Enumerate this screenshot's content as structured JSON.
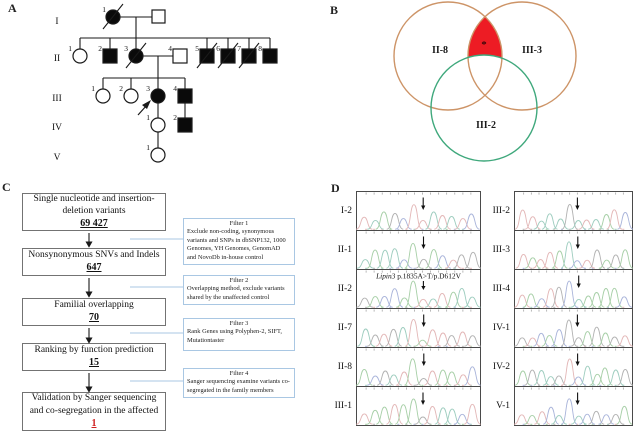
{
  "panels": {
    "a": "A",
    "b": "B",
    "c": "C",
    "d": "D"
  },
  "panel_a": {
    "generations": [
      "I",
      "II",
      "III",
      "IV",
      "V"
    ],
    "individuals": [
      {
        "id": "I-1",
        "num": "1",
        "sex": "female",
        "affected": true,
        "deceased": true
      },
      {
        "id": "I-2",
        "num": "",
        "sex": "male",
        "affected": false,
        "deceased": false
      },
      {
        "id": "II-1",
        "num": "1",
        "sex": "female",
        "affected": false,
        "deceased": false
      },
      {
        "id": "II-2",
        "num": "2",
        "sex": "male",
        "affected": true,
        "deceased": false
      },
      {
        "id": "II-3",
        "num": "3",
        "sex": "female",
        "affected": true,
        "deceased": true
      },
      {
        "id": "II-4",
        "num": "4",
        "sex": "male",
        "affected": false,
        "deceased": false
      },
      {
        "id": "II-5",
        "num": "5",
        "sex": "male",
        "affected": true,
        "deceased": true
      },
      {
        "id": "II-6",
        "num": "6",
        "sex": "male",
        "affected": true,
        "deceased": true
      },
      {
        "id": "II-7",
        "num": "7",
        "sex": "male",
        "affected": true,
        "deceased": true
      },
      {
        "id": "II-8",
        "num": "8",
        "sex": "male",
        "affected": true,
        "deceased": false
      },
      {
        "id": "III-1",
        "num": "1",
        "sex": "female",
        "affected": false,
        "deceased": false
      },
      {
        "id": "III-2",
        "num": "2",
        "sex": "female",
        "affected": false,
        "deceased": false
      },
      {
        "id": "III-3",
        "num": "3",
        "sex": "female",
        "affected": true,
        "deceased": false,
        "proband": true
      },
      {
        "id": "III-4",
        "num": "4",
        "sex": "male",
        "affected": true,
        "deceased": false
      },
      {
        "id": "IV-1",
        "num": "1",
        "sex": "female",
        "affected": false,
        "deceased": false
      },
      {
        "id": "IV-2",
        "num": "2",
        "sex": "male",
        "affected": true,
        "deceased": false
      },
      {
        "id": "V-1",
        "num": "1",
        "sex": "female",
        "affected": false,
        "deceased": false
      }
    ]
  },
  "panel_b": {
    "sets": [
      {
        "label": "II-8",
        "color": "#cd9467"
      },
      {
        "label": "III-3",
        "color": "#cd9467"
      },
      {
        "label": "III-2",
        "color": "#3fa87c"
      }
    ],
    "intersection_marker": "*",
    "intersection_color": "#ed1c24"
  },
  "panel_c": {
    "steps": [
      {
        "text": "Single nucleotide and insertion-deletion variants",
        "count": "69 427"
      },
      {
        "text": "Nonsynonymous SNVs and Indels",
        "count": "647"
      },
      {
        "text": "Familial overlapping",
        "count": "70"
      },
      {
        "text": "Ranking by function prediction",
        "count": "15"
      },
      {
        "text": "Validation by Sanger sequencing and co-segregation in the affected",
        "count": "1"
      }
    ],
    "filters": [
      {
        "title": "Filter 1",
        "text": "Exclude non-coding, synonymous variants and SNPs in dbSNP132, 1000 Genomes, YH Genomes, GenomAD and NovoDb in-house control"
      },
      {
        "title": "Filter 2",
        "text": "Overlapping method, exclude variants shared by the unaffected control"
      },
      {
        "title": "Filter 3",
        "text": "Rank Genes using Polyphen-2, SIFT, Mutationtaster"
      },
      {
        "title": "Filter 4",
        "text": "Sanger sequencing examine variants co-segregated in the family members"
      }
    ]
  },
  "panel_d": {
    "annotation": {
      "gene": "Lipin3",
      "rest": " p.1835A>T/p.D612V"
    },
    "left_rows": [
      "I-2",
      "II-1",
      "II-2",
      "II-7",
      "II-8",
      "III-1"
    ],
    "right_rows": [
      "III-2",
      "III-3",
      "III-4",
      "IV-1",
      "IV-2",
      "V-1"
    ],
    "trace_colors": [
      "#a9b4da",
      "#a7cfa7",
      "#e3b7b7",
      "#9ecdbf",
      "#b2b2b2"
    ]
  }
}
